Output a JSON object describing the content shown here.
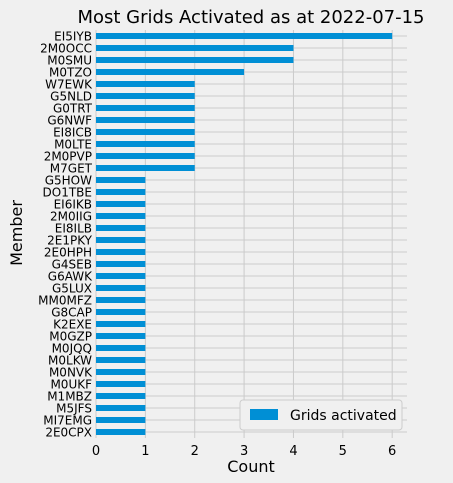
{
  "chart_data": {
    "type": "bar",
    "orientation": "horizontal",
    "title": "Most Grids Activated as at 2022-07-15",
    "xlabel": "Count",
    "ylabel": "Member",
    "xlim": [
      0,
      6.3
    ],
    "xticks": [
      0,
      1,
      2,
      3,
      4,
      5,
      6
    ],
    "grid": true,
    "legend_position": "lower-right",
    "bar_color": "#008fd5",
    "categories": [
      "EI5IYB",
      "2M0OCC",
      "M0SMU",
      "M0TZO",
      "W7EWK",
      "G5NLD",
      "G0TRT",
      "G6NWF",
      "EI8ICB",
      "M0LTE",
      "2M0PVP",
      "M7GET",
      "G5HOW",
      "DO1TBE",
      "EI6IKB",
      "2M0IIG",
      "EI8ILB",
      "2E1PKY",
      "2E0HPH",
      "G4SEB",
      "G6AWK",
      "G5LUX",
      "MM0MFZ",
      "G8CAP",
      "K2EXE",
      "M0GZP",
      "M0JQQ",
      "M0LKW",
      "M0NVK",
      "M0UKF",
      "M1MBZ",
      "M5JFS",
      "MI7EMG",
      "2E0CPX"
    ],
    "series": [
      {
        "name": "Grids activated",
        "values": [
          6,
          4,
          4,
          3,
          2,
          2,
          2,
          2,
          2,
          2,
          2,
          2,
          1,
          1,
          1,
          1,
          1,
          1,
          1,
          1,
          1,
          1,
          1,
          1,
          1,
          1,
          1,
          1,
          1,
          1,
          1,
          1,
          1,
          1
        ]
      }
    ]
  }
}
